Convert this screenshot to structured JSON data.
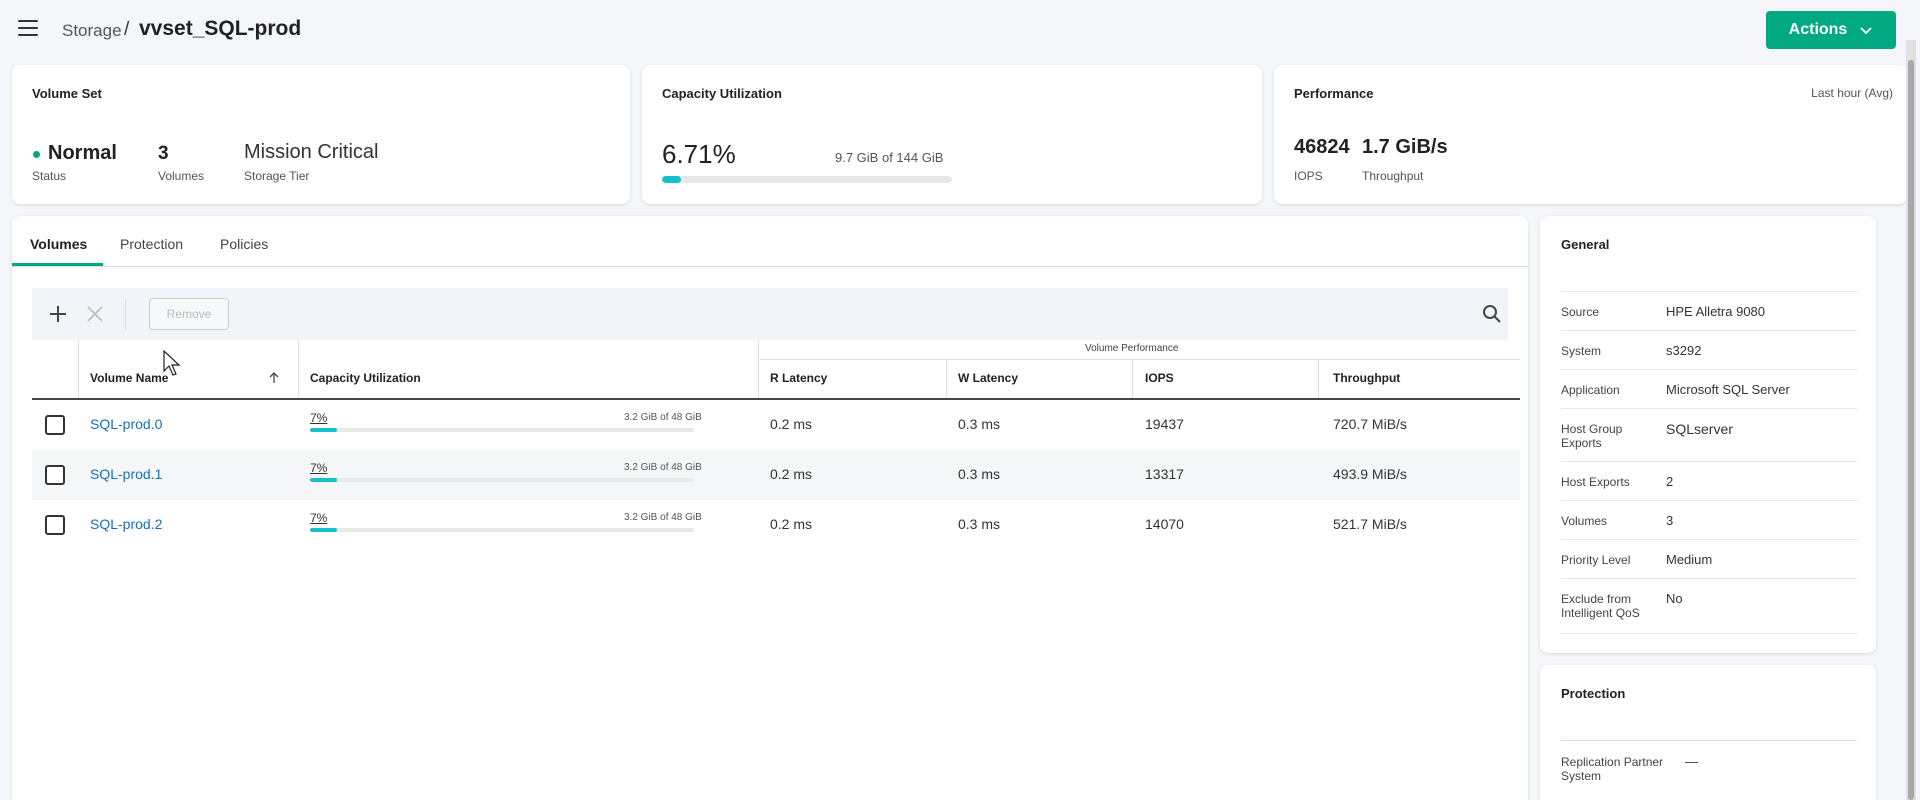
{
  "header": {
    "breadcrumb_parent": "Storage",
    "breadcrumb_sep": "/",
    "title": "vvset_SQL-prod",
    "actions_label": "Actions"
  },
  "volume_set": {
    "title": "Volume Set",
    "status_value": "Normal",
    "status_label": "Status",
    "volumes_value": "3",
    "volumes_label": "Volumes",
    "tier_value": "Mission Critical",
    "tier_label": "Storage Tier"
  },
  "capacity": {
    "title": "Capacity Utilization",
    "percent": "6.71%",
    "percent_value": 6.71,
    "detail": "9.7 GiB of 144 GiB"
  },
  "performance": {
    "title": "Performance",
    "period": "Last hour (Avg)",
    "iops_value": "46824",
    "iops_label": "IOPS",
    "throughput_value": "1.7 GiB/s",
    "throughput_label": "Throughput"
  },
  "tabs": [
    "Volumes",
    "Protection",
    "Policies"
  ],
  "toolbar": {
    "remove_label": "Remove"
  },
  "table": {
    "group_header": "Volume Performance",
    "headers": {
      "name": "Volume Name",
      "capacity": "Capacity Utilization",
      "r_latency": "R Latency",
      "w_latency": "W Latency",
      "iops": "IOPS",
      "throughput": "Throughput"
    },
    "rows": [
      {
        "name": "SQL-prod.0",
        "cap_pct": "7%",
        "cap_value": 7,
        "cap_detail": "3.2 GiB of 48 GiB",
        "r_latency": "0.2 ms",
        "w_latency": "0.3 ms",
        "iops": "19437",
        "throughput": "720.7 MiB/s"
      },
      {
        "name": "SQL-prod.1",
        "cap_pct": "7%",
        "cap_value": 7,
        "cap_detail": "3.2 GiB of 48 GiB",
        "r_latency": "0.2 ms",
        "w_latency": "0.3 ms",
        "iops": "13317",
        "throughput": "493.9 MiB/s"
      },
      {
        "name": "SQL-prod.2",
        "cap_pct": "7%",
        "cap_value": 7,
        "cap_detail": "3.2 GiB of 48 GiB",
        "r_latency": "0.2 ms",
        "w_latency": "0.3 ms",
        "iops": "14070",
        "throughput": "521.7 MiB/s"
      }
    ]
  },
  "general": {
    "title": "General",
    "items": [
      {
        "key": "Source",
        "value": "HPE Alletra 9080"
      },
      {
        "key": "System",
        "value": "s3292"
      },
      {
        "key": "Application",
        "value": "Microsoft SQL Server"
      },
      {
        "key": "Host Group Exports",
        "value": "SQLserver"
      },
      {
        "key": "Host Exports",
        "value": "2"
      },
      {
        "key": "Volumes",
        "value": "3"
      },
      {
        "key": "Priority Level",
        "value": "Medium"
      },
      {
        "key": "Exclude from Intelligent QoS",
        "value": "No"
      }
    ]
  },
  "protection": {
    "title": "Protection",
    "items": [
      {
        "key": "Replication Partner System",
        "value": "—"
      }
    ]
  },
  "colors": {
    "accent": "#01a982",
    "progress": "#17c0c9",
    "link": "#1a6fb8"
  }
}
